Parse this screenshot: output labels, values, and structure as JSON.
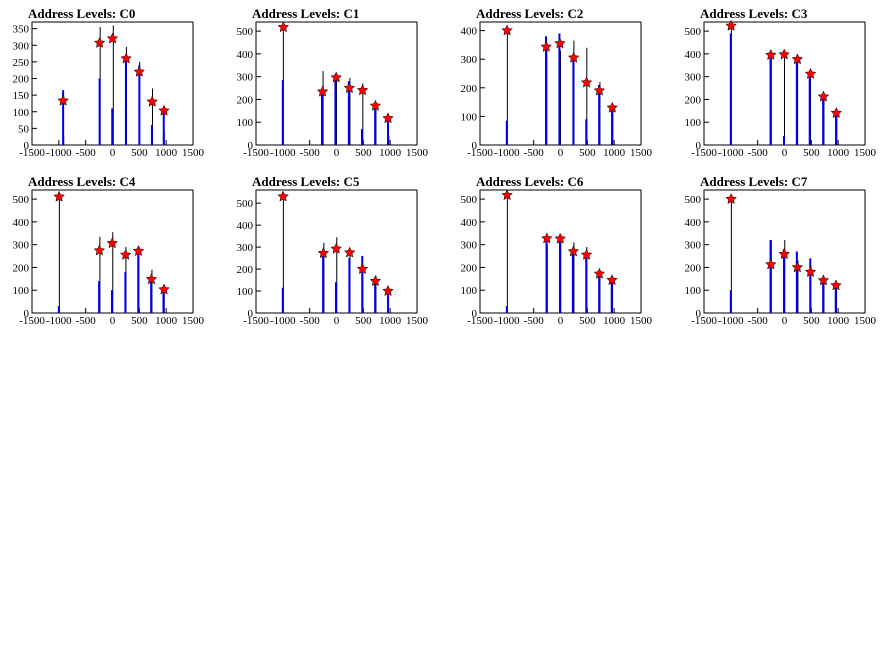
{
  "chart_data": [
    {
      "type": "bar",
      "title": "Address Levels: C0",
      "xlim": [
        -1500,
        1500
      ],
      "ylim": [
        0,
        370
      ],
      "x_ticks": [
        -1500,
        -1000,
        -500,
        0,
        500,
        1000,
        1500
      ],
      "y_ticks": [
        0,
        50,
        100,
        150,
        200,
        250,
        300,
        350
      ],
      "blue_peaks": [
        {
          "x": -920,
          "y": 165
        },
        {
          "x": -240,
          "y": 200
        },
        {
          "x": -5,
          "y": 110
        },
        {
          "x": 250,
          "y": 270
        },
        {
          "x": 500,
          "y": 240
        },
        {
          "x": 735,
          "y": 60
        },
        {
          "x": 955,
          "y": 105
        }
      ],
      "black_peaks": [
        {
          "x": -910,
          "y": 30
        },
        {
          "x": -230,
          "y": 355
        },
        {
          "x": 15,
          "y": 360
        },
        {
          "x": 260,
          "y": 295
        },
        {
          "x": 505,
          "y": 250
        },
        {
          "x": 745,
          "y": 170
        },
        {
          "x": 965,
          "y": 40
        }
      ],
      "markers": [
        {
          "x": -920,
          "y": 133
        },
        {
          "x": -240,
          "y": 307
        },
        {
          "x": 0,
          "y": 320
        },
        {
          "x": 255,
          "y": 260
        },
        {
          "x": 500,
          "y": 220
        },
        {
          "x": 740,
          "y": 130
        },
        {
          "x": 960,
          "y": 103
        }
      ]
    },
    {
      "type": "bar",
      "title": "Address Levels: C1",
      "xlim": [
        -1500,
        1500
      ],
      "ylim": [
        0,
        540
      ],
      "x_ticks": [
        -1500,
        -1000,
        -500,
        0,
        500,
        1000,
        1500
      ],
      "y_ticks": [
        0,
        100,
        200,
        300,
        400,
        500
      ],
      "blue_peaks": [
        {
          "x": -1000,
          "y": 285
        },
        {
          "x": -270,
          "y": 230
        },
        {
          "x": -20,
          "y": 310
        },
        {
          "x": 230,
          "y": 280
        },
        {
          "x": 475,
          "y": 70
        },
        {
          "x": 720,
          "y": 170
        },
        {
          "x": 960,
          "y": 110
        }
      ],
      "black_peaks": [
        {
          "x": -990,
          "y": 530
        },
        {
          "x": -250,
          "y": 325
        },
        {
          "x": 0,
          "y": 310
        },
        {
          "x": 250,
          "y": 295
        },
        {
          "x": 490,
          "y": 270
        },
        {
          "x": 735,
          "y": 180
        },
        {
          "x": 975,
          "y": 40
        }
      ],
      "markers": [
        {
          "x": -990,
          "y": 517
        },
        {
          "x": -260,
          "y": 234
        },
        {
          "x": -5,
          "y": 296
        },
        {
          "x": 240,
          "y": 250
        },
        {
          "x": 485,
          "y": 240
        },
        {
          "x": 725,
          "y": 172
        },
        {
          "x": 960,
          "y": 117
        }
      ]
    },
    {
      "type": "bar",
      "title": "Address Levels: C2",
      "xlim": [
        -1500,
        1500
      ],
      "ylim": [
        0,
        430
      ],
      "x_ticks": [
        -1500,
        -1000,
        -500,
        0,
        500,
        1000,
        1500
      ],
      "y_ticks": [
        0,
        100,
        200,
        300,
        400
      ],
      "blue_peaks": [
        {
          "x": -1000,
          "y": 85
        },
        {
          "x": -270,
          "y": 380
        },
        {
          "x": -20,
          "y": 390
        },
        {
          "x": 240,
          "y": 305
        },
        {
          "x": 480,
          "y": 90
        },
        {
          "x": 720,
          "y": 210
        },
        {
          "x": 960,
          "y": 140
        }
      ],
      "black_peaks": [
        {
          "x": -990,
          "y": 410
        },
        {
          "x": -255,
          "y": 330
        },
        {
          "x": 0,
          "y": 330
        },
        {
          "x": 250,
          "y": 365
        },
        {
          "x": 490,
          "y": 340
        },
        {
          "x": 735,
          "y": 220
        },
        {
          "x": 975,
          "y": 120
        }
      ],
      "markers": [
        {
          "x": -995,
          "y": 400
        },
        {
          "x": -265,
          "y": 343
        },
        {
          "x": -10,
          "y": 355
        },
        {
          "x": 245,
          "y": 305
        },
        {
          "x": 485,
          "y": 218
        },
        {
          "x": 725,
          "y": 190
        },
        {
          "x": 965,
          "y": 130
        }
      ]
    },
    {
      "type": "bar",
      "title": "Address Levels: C3",
      "xlim": [
        -1500,
        1500
      ],
      "ylim": [
        0,
        540
      ],
      "x_ticks": [
        -1500,
        -1000,
        -500,
        0,
        500,
        1000,
        1500
      ],
      "y_ticks": [
        0,
        100,
        200,
        300,
        400,
        500
      ],
      "blue_peaks": [
        {
          "x": -1000,
          "y": 490
        },
        {
          "x": -260,
          "y": 380
        },
        {
          "x": -10,
          "y": 40
        },
        {
          "x": 230,
          "y": 380
        },
        {
          "x": 470,
          "y": 300
        },
        {
          "x": 720,
          "y": 210
        },
        {
          "x": 960,
          "y": 140
        }
      ],
      "black_peaks": [
        {
          "x": -990,
          "y": 540
        },
        {
          "x": -245,
          "y": 390
        },
        {
          "x": 0,
          "y": 400
        },
        {
          "x": 245,
          "y": 375
        },
        {
          "x": 485,
          "y": 330
        },
        {
          "x": 735,
          "y": 230
        },
        {
          "x": 975,
          "y": 150
        }
      ],
      "markers": [
        {
          "x": -995,
          "y": 523
        },
        {
          "x": -255,
          "y": 395
        },
        {
          "x": -5,
          "y": 397
        },
        {
          "x": 240,
          "y": 376
        },
        {
          "x": 485,
          "y": 312
        },
        {
          "x": 725,
          "y": 212
        },
        {
          "x": 965,
          "y": 140
        }
      ]
    },
    {
      "type": "bar",
      "title": "Address Levels: C4",
      "xlim": [
        -1500,
        1500
      ],
      "ylim": [
        0,
        540
      ],
      "x_ticks": [
        -1500,
        -1000,
        -500,
        0,
        500,
        1000,
        1500
      ],
      "y_ticks": [
        0,
        100,
        200,
        300,
        400,
        500
      ],
      "blue_peaks": [
        {
          "x": -1000,
          "y": 30
        },
        {
          "x": -250,
          "y": 140
        },
        {
          "x": -10,
          "y": 100
        },
        {
          "x": 240,
          "y": 180
        },
        {
          "x": 480,
          "y": 260
        },
        {
          "x": 720,
          "y": 150
        },
        {
          "x": 950,
          "y": 110
        }
      ],
      "black_peaks": [
        {
          "x": -990,
          "y": 510
        },
        {
          "x": -235,
          "y": 335
        },
        {
          "x": 5,
          "y": 355
        },
        {
          "x": 250,
          "y": 290
        },
        {
          "x": 490,
          "y": 280
        },
        {
          "x": 735,
          "y": 190
        },
        {
          "x": 965,
          "y": 110
        }
      ],
      "markers": [
        {
          "x": -995,
          "y": 510
        },
        {
          "x": -245,
          "y": 274
        },
        {
          "x": -5,
          "y": 306
        },
        {
          "x": 245,
          "y": 255
        },
        {
          "x": 485,
          "y": 272
        },
        {
          "x": 725,
          "y": 148
        },
        {
          "x": 960,
          "y": 103
        }
      ]
    },
    {
      "type": "bar",
      "title": "Address Levels: C5",
      "xlim": [
        -1500,
        1500
      ],
      "ylim": [
        0,
        560
      ],
      "x_ticks": [
        -1500,
        -1000,
        -500,
        0,
        500,
        1000,
        1500
      ],
      "y_ticks": [
        0,
        100,
        200,
        300,
        400,
        500
      ],
      "blue_peaks": [
        {
          "x": -1000,
          "y": 115
        },
        {
          "x": -250,
          "y": 280
        },
        {
          "x": -10,
          "y": 140
        },
        {
          "x": 240,
          "y": 250
        },
        {
          "x": 480,
          "y": 260
        },
        {
          "x": 720,
          "y": 150
        },
        {
          "x": 960,
          "y": 100
        }
      ],
      "black_peaks": [
        {
          "x": -990,
          "y": 540
        },
        {
          "x": -235,
          "y": 320
        },
        {
          "x": 5,
          "y": 345
        },
        {
          "x": 250,
          "y": 285
        },
        {
          "x": 490,
          "y": 210
        },
        {
          "x": 735,
          "y": 170
        },
        {
          "x": 970,
          "y": 110
        }
      ],
      "markers": [
        {
          "x": -995,
          "y": 530
        },
        {
          "x": -245,
          "y": 272
        },
        {
          "x": -5,
          "y": 292
        },
        {
          "x": 245,
          "y": 275
        },
        {
          "x": 485,
          "y": 200
        },
        {
          "x": 725,
          "y": 145
        },
        {
          "x": 960,
          "y": 100
        }
      ]
    },
    {
      "type": "bar",
      "title": "Address Levels: C6",
      "xlim": [
        -1500,
        1500
      ],
      "ylim": [
        0,
        540
      ],
      "x_ticks": [
        -1500,
        -1000,
        -500,
        0,
        500,
        1000,
        1500
      ],
      "y_ticks": [
        0,
        100,
        200,
        300,
        400,
        500
      ],
      "blue_peaks": [
        {
          "x": -1000,
          "y": 30
        },
        {
          "x": -260,
          "y": 330
        },
        {
          "x": -10,
          "y": 330
        },
        {
          "x": 230,
          "y": 280
        },
        {
          "x": 480,
          "y": 250
        },
        {
          "x": 720,
          "y": 180
        },
        {
          "x": 955,
          "y": 140
        }
      ],
      "black_peaks": [
        {
          "x": -990,
          "y": 520
        },
        {
          "x": -245,
          "y": 300
        },
        {
          "x": 5,
          "y": 330
        },
        {
          "x": 250,
          "y": 310
        },
        {
          "x": 490,
          "y": 290
        },
        {
          "x": 735,
          "y": 185
        },
        {
          "x": 970,
          "y": 150
        }
      ],
      "markers": [
        {
          "x": -995,
          "y": 517
        },
        {
          "x": -255,
          "y": 327
        },
        {
          "x": -5,
          "y": 326
        },
        {
          "x": 240,
          "y": 270
        },
        {
          "x": 485,
          "y": 255
        },
        {
          "x": 725,
          "y": 172
        },
        {
          "x": 960,
          "y": 144
        }
      ]
    },
    {
      "type": "bar",
      "title": "Address Levels: C7",
      "xlim": [
        -1500,
        1500
      ],
      "ylim": [
        0,
        540
      ],
      "x_ticks": [
        -1500,
        -1000,
        -500,
        0,
        500,
        1000,
        1500
      ],
      "y_ticks": [
        0,
        100,
        200,
        300,
        400,
        500
      ],
      "blue_peaks": [
        {
          "x": -1000,
          "y": 100
        },
        {
          "x": -260,
          "y": 320
        },
        {
          "x": -10,
          "y": 280
        },
        {
          "x": 230,
          "y": 270
        },
        {
          "x": 480,
          "y": 240
        },
        {
          "x": 720,
          "y": 150
        },
        {
          "x": 955,
          "y": 130
        }
      ],
      "black_peaks": [
        {
          "x": -990,
          "y": 510
        },
        {
          "x": -245,
          "y": 320
        },
        {
          "x": 5,
          "y": 320
        },
        {
          "x": 250,
          "y": 230
        },
        {
          "x": 490,
          "y": 210
        },
        {
          "x": 735,
          "y": 160
        },
        {
          "x": 970,
          "y": 120
        }
      ],
      "markers": [
        {
          "x": -995,
          "y": 500
        },
        {
          "x": -255,
          "y": 213
        },
        {
          "x": -5,
          "y": 258
        },
        {
          "x": 240,
          "y": 200
        },
        {
          "x": 485,
          "y": 180
        },
        {
          "x": 725,
          "y": 143
        },
        {
          "x": 960,
          "y": 121
        }
      ]
    }
  ]
}
